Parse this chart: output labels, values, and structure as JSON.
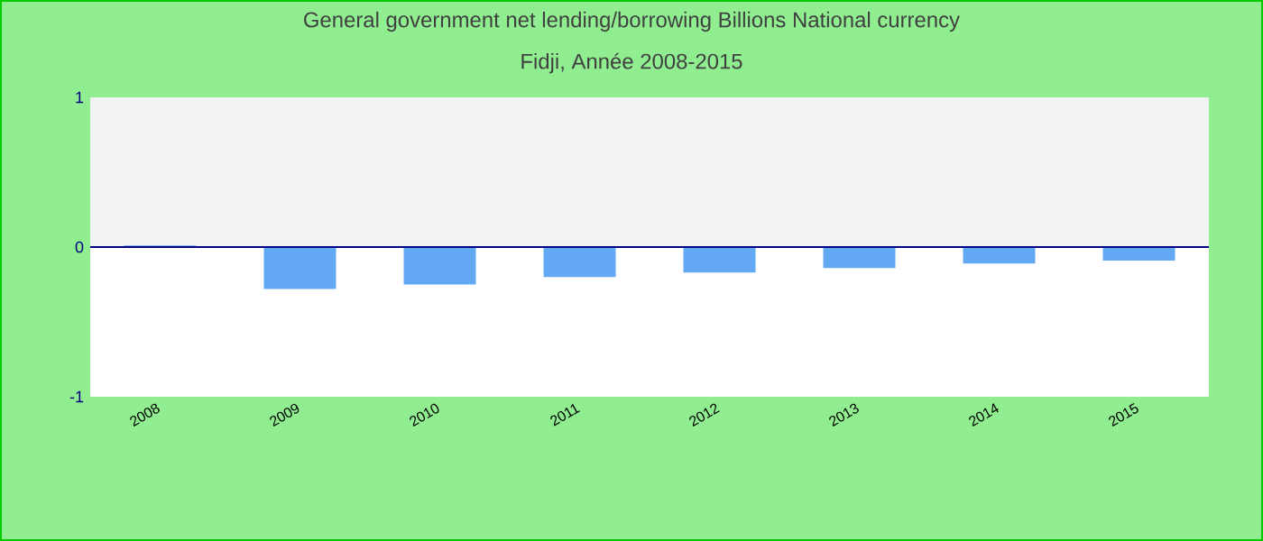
{
  "chart_data": {
    "type": "bar",
    "title": "General government net lending/borrowing Billions National currency",
    "subtitle": "Fidji, Année 2008-2015",
    "categories": [
      "2008",
      "2009",
      "2010",
      "2011",
      "2012",
      "2013",
      "2014",
      "2015"
    ],
    "values": [
      0.01,
      -0.28,
      -0.25,
      -0.2,
      -0.17,
      -0.14,
      -0.11,
      -0.09
    ],
    "color": "#63a8f2",
    "ylim": [
      -1,
      1
    ],
    "yticks": [
      -1,
      0,
      1
    ],
    "grid": false,
    "ref_lines": [
      {
        "axis": "y",
        "value": 0,
        "color": "#000080"
      }
    ],
    "bands": [
      {
        "axis": "y",
        "from": 0,
        "to": 1,
        "color": "#f2f2f2"
      }
    ]
  }
}
